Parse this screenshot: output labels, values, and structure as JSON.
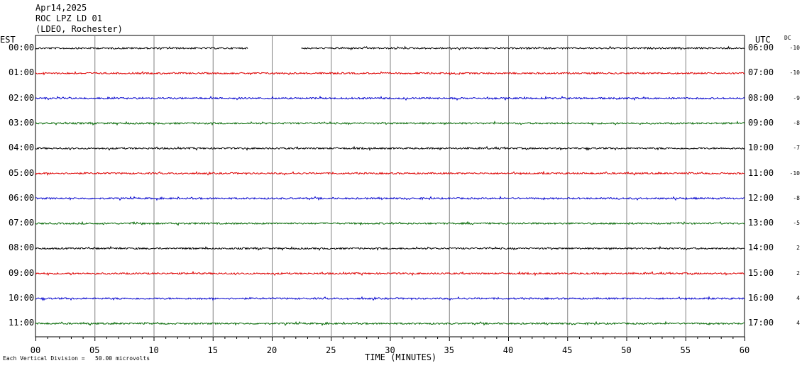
{
  "header": {
    "date": "Apr14,2025",
    "station": "ROC LPZ LD 01",
    "network": "(LDEO, Rochester)"
  },
  "left_tz": "EST",
  "right_tz": "UTC",
  "dc_header": "DC",
  "footnote": "Each Vertical Division =   50.00 microvolts",
  "chart_data": {
    "type": "line",
    "title": "",
    "xlabel": "TIME (MINUTES)",
    "x_ticks": [
      "00",
      "05",
      "10",
      "15",
      "20",
      "25",
      "30",
      "35",
      "40",
      "45",
      "50",
      "55",
      "60"
    ],
    "xlim": [
      0,
      60
    ],
    "grid": true,
    "rows": [
      {
        "left": "00:00",
        "right": "06:00",
        "dc": "-10",
        "color": "#000000",
        "gap": [
          18,
          22.5
        ]
      },
      {
        "left": "01:00",
        "right": "07:00",
        "dc": "-10",
        "color": "#dd0000"
      },
      {
        "left": "02:00",
        "right": "08:00",
        "dc": "-9",
        "color": "#0000cc"
      },
      {
        "left": "03:00",
        "right": "09:00",
        "dc": "-8",
        "color": "#006600"
      },
      {
        "left": "04:00",
        "right": "10:00",
        "dc": "-7",
        "color": "#000000"
      },
      {
        "left": "05:00",
        "right": "11:00",
        "dc": "-10",
        "color": "#dd0000"
      },
      {
        "left": "06:00",
        "right": "12:00",
        "dc": "-8",
        "color": "#0000cc"
      },
      {
        "left": "07:00",
        "right": "13:00",
        "dc": "-5",
        "color": "#006600"
      },
      {
        "left": "08:00",
        "right": "14:00",
        "dc": "2",
        "color": "#000000"
      },
      {
        "left": "09:00",
        "right": "15:00",
        "dc": "2",
        "color": "#dd0000"
      },
      {
        "left": "10:00",
        "right": "16:00",
        "dc": "4",
        "color": "#0000cc"
      },
      {
        "left": "11:00",
        "right": "17:00",
        "dc": "4",
        "color": "#006600"
      }
    ]
  }
}
